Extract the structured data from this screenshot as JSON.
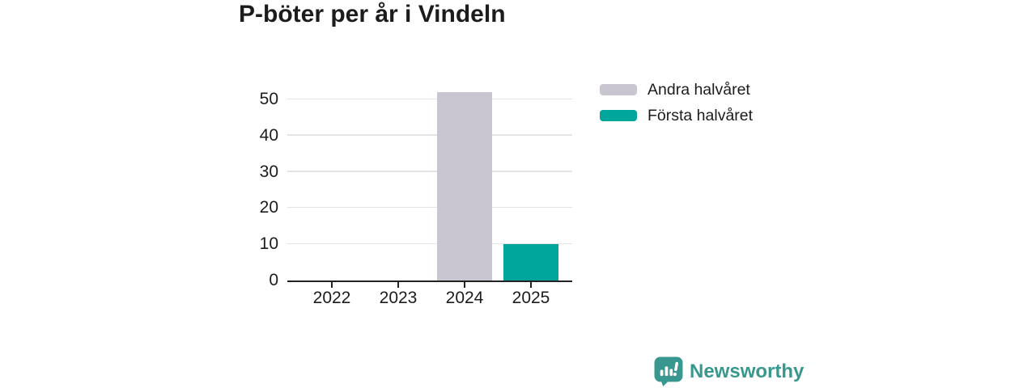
{
  "page": {
    "background": "#ffffff"
  },
  "chart_data": {
    "type": "bar",
    "stacked": true,
    "title": "P-böter per år i Vindeln",
    "categories": [
      "2022",
      "2023",
      "2024",
      "2025"
    ],
    "series": [
      {
        "name": "Andra halvåret",
        "color": "#c9c6d2",
        "values": [
          0,
          0,
          52,
          0
        ]
      },
      {
        "name": "Första halvåret",
        "color": "#00a69c",
        "values": [
          0,
          0,
          0,
          10
        ]
      }
    ],
    "xlabel": "",
    "ylabel": "",
    "y_ticks": [
      0,
      10,
      20,
      30,
      40,
      50
    ],
    "ylim": [
      0,
      55
    ],
    "grid": true,
    "legend_position": "top-right"
  },
  "branding": {
    "logo_text": "Newsworthy",
    "logo_color": "#38978e",
    "logo_icon": "bar-chart-speech-bubble-icon"
  },
  "colors": {
    "axis": "#222222",
    "grid": "#e3e3e3",
    "text": "#1c1c1c"
  }
}
